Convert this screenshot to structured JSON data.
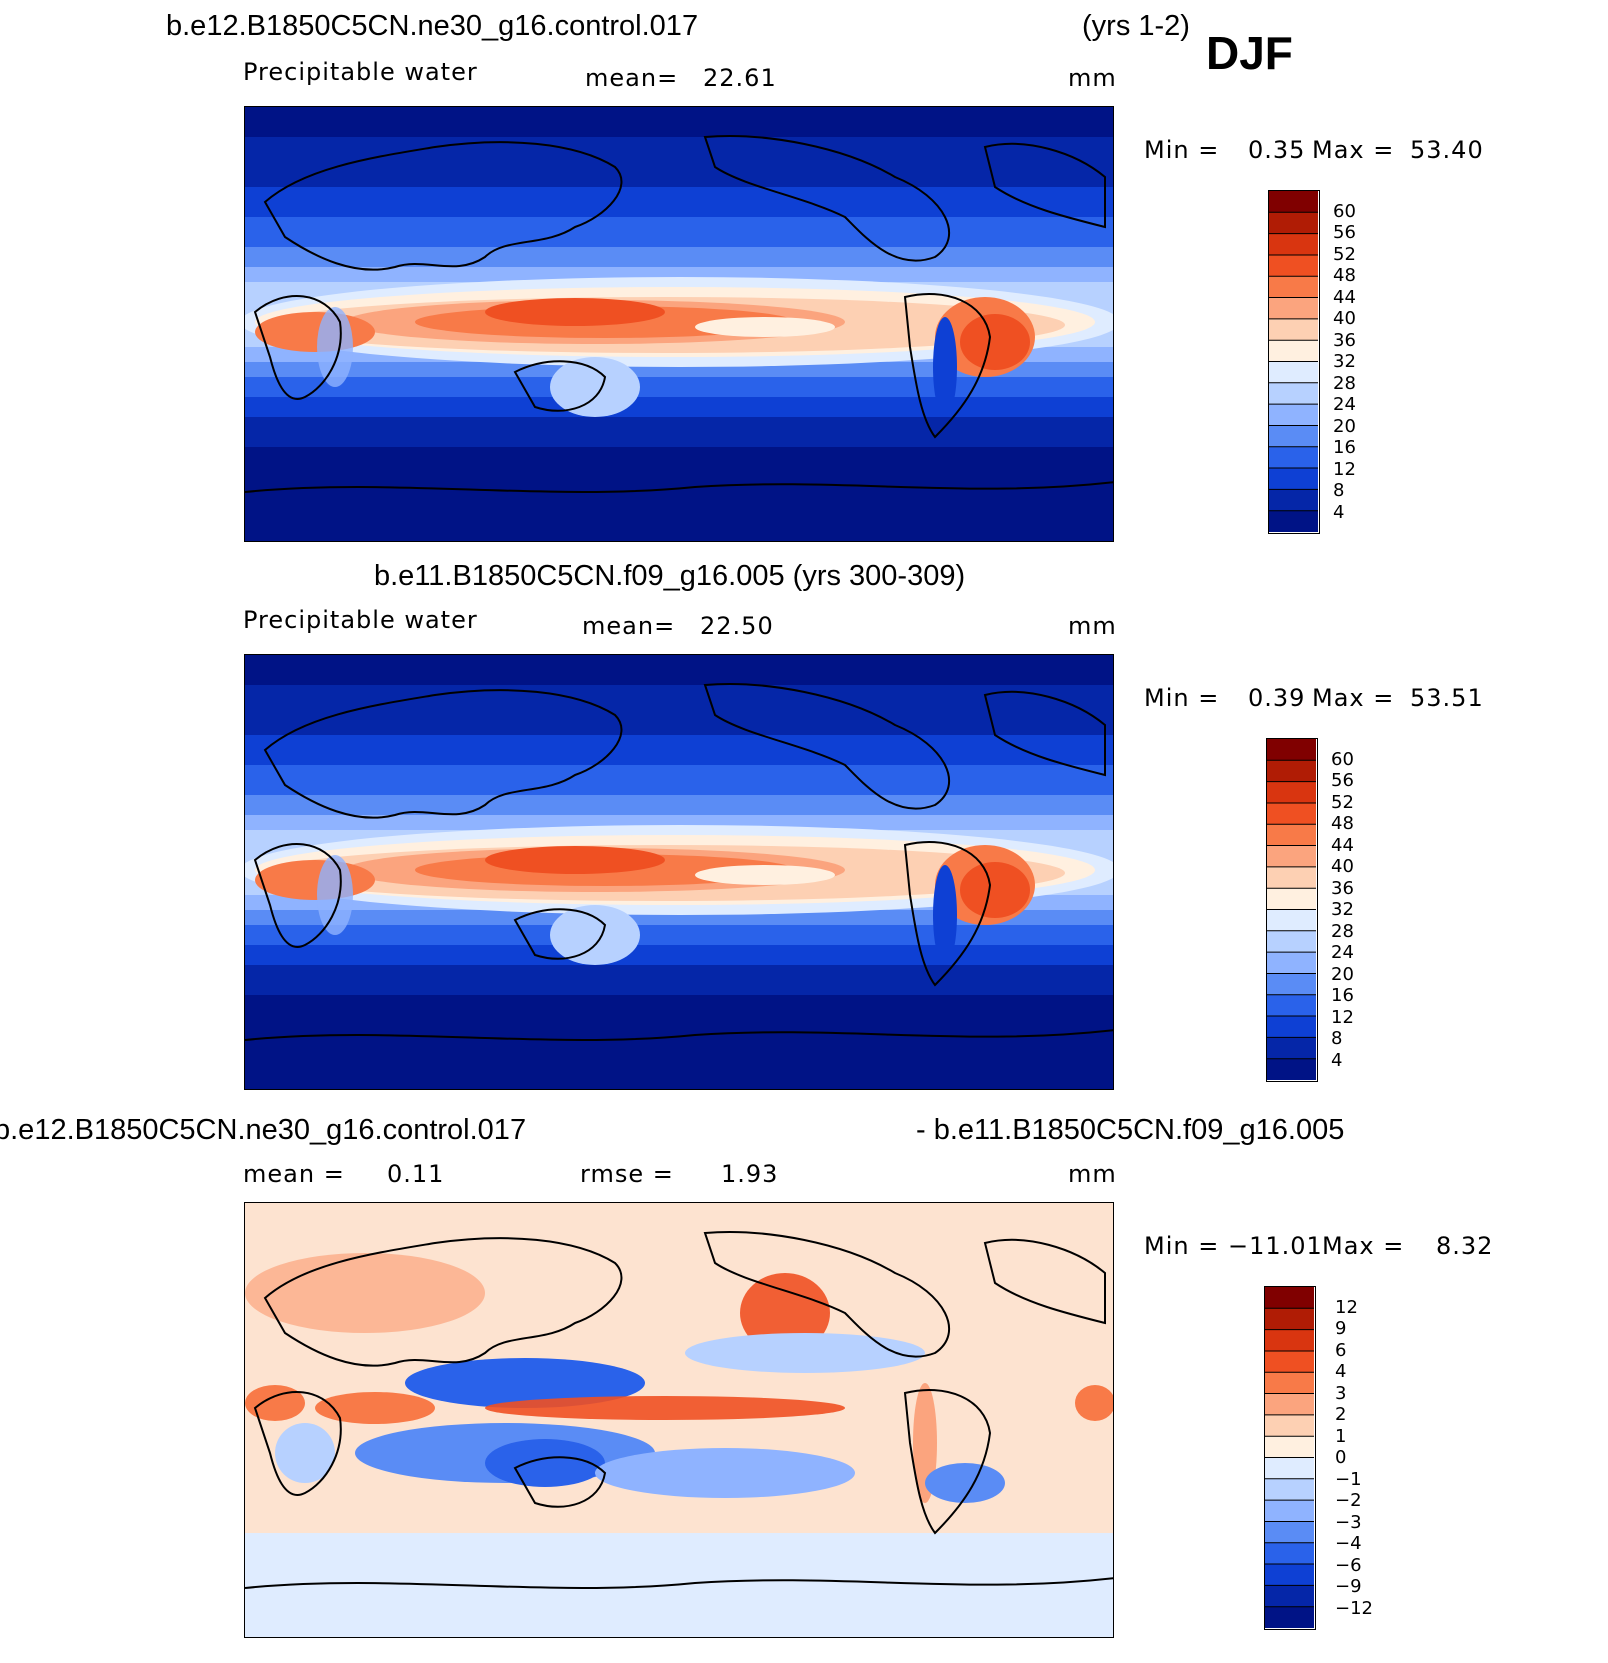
{
  "season": "DJF",
  "panels": [
    {
      "title": "b.e12.B1850C5CN.ne30_g16.control.017",
      "years": "(yrs 1-2)",
      "variable": "Precipitable water",
      "mean_label": "mean=",
      "mean_value": "22.61",
      "units": "mm",
      "min_label": "Min =",
      "min_value": "0.35",
      "max_label": "Max =",
      "max_value": "53.40",
      "colorbar": {
        "labels": [
          "60",
          "56",
          "52",
          "48",
          "44",
          "40",
          "36",
          "32",
          "28",
          "24",
          "20",
          "16",
          "12",
          "8",
          "4"
        ],
        "colors": [
          "#800000",
          "#b01c05",
          "#d93510",
          "#ef5022",
          "#f87a48",
          "#fba47e",
          "#fdd0b3",
          "#fff0e0",
          "#dfecff",
          "#b7d1ff",
          "#8fb3ff",
          "#5a8cf5",
          "#2a62ea",
          "#0e40d4",
          "#0526a8",
          "#001386"
        ]
      }
    },
    {
      "title": "b.e11.B1850C5CN.f09_g16.005 (yrs 300-309)",
      "variable": "Precipitable water",
      "mean_label": "mean=",
      "mean_value": "22.50",
      "units": "mm",
      "min_label": "Min =",
      "min_value": "0.39",
      "max_label": "Max =",
      "max_value": "53.51",
      "colorbar": {
        "labels": [
          "60",
          "56",
          "52",
          "48",
          "44",
          "40",
          "36",
          "32",
          "28",
          "24",
          "20",
          "16",
          "12",
          "8",
          "4"
        ],
        "colors": [
          "#800000",
          "#b01c05",
          "#d93510",
          "#ef5022",
          "#f87a48",
          "#fba47e",
          "#fdd0b3",
          "#fff0e0",
          "#dfecff",
          "#b7d1ff",
          "#8fb3ff",
          "#5a8cf5",
          "#2a62ea",
          "#0e40d4",
          "#0526a8",
          "#001386"
        ]
      }
    },
    {
      "title_left": "b.e12.B1850C5CN.ne30_g16.control.017",
      "title_right": "- b.e11.B1850C5CN.f09_g16.005",
      "mean_label": "mean =",
      "mean_value": "0.11",
      "rmse_label": "rmse =",
      "rmse_value": "1.93",
      "units": "mm",
      "min_label": "Min =",
      "min_value": "−11.01",
      "max_label": "Max =",
      "max_value": "8.32",
      "colorbar": {
        "labels": [
          "12",
          "9",
          "6",
          "4",
          "3",
          "2",
          "1",
          "0",
          "−1",
          "−2",
          "−3",
          "−4",
          "−6",
          "−9",
          "−12"
        ],
        "colors": [
          "#800000",
          "#b01c05",
          "#d93510",
          "#ef5022",
          "#f87a48",
          "#fba47e",
          "#fdd0b3",
          "#fff0e0",
          "#dfecff",
          "#b7d1ff",
          "#8fb3ff",
          "#5a8cf5",
          "#2a62ea",
          "#0e40d4",
          "#0526a8",
          "#001386"
        ]
      }
    }
  ]
}
